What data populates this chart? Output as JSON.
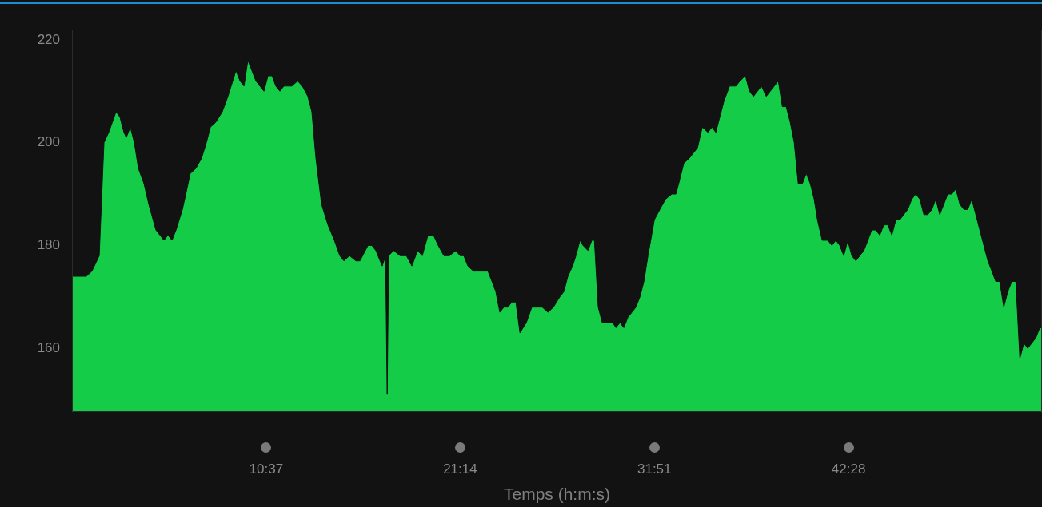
{
  "chart_data": {
    "type": "area",
    "xlabel": "Temps (h:m:s)",
    "color": "#14cc48",
    "grid": false,
    "xlim": [
      0,
      53.05
    ],
    "ylim": [
      147.6,
      222
    ],
    "xticks": [
      {
        "value": 10.62,
        "label": "10:37"
      },
      {
        "value": 21.23,
        "label": "21:14"
      },
      {
        "value": 31.85,
        "label": "31:51"
      },
      {
        "value": 42.47,
        "label": "42:28"
      }
    ],
    "yticks": [
      160,
      180,
      200,
      220
    ],
    "x": [
      0.0,
      0.44,
      0.79,
      1.09,
      1.49,
      1.75,
      2.01,
      2.41,
      2.62,
      2.84,
      2.97,
      3.19,
      3.41,
      3.63,
      3.94,
      4.2,
      4.59,
      4.81,
      5.03,
      5.25,
      5.47,
      5.69,
      6.04,
      6.47,
      6.78,
      7.09,
      7.35,
      7.57,
      7.87,
      8.22,
      8.53,
      8.97,
      9.19,
      9.41,
      9.62,
      9.84,
      10.06,
      10.5,
      10.72,
      10.94,
      11.15,
      11.37,
      11.59,
      11.81,
      12.03,
      12.34,
      12.6,
      12.9,
      13.12,
      13.34,
      13.65,
      14.0,
      14.35,
      14.65,
      14.87,
      15.18,
      15.53,
      15.75,
      16.19,
      16.4,
      16.62,
      16.97,
      17.15,
      17.24,
      17.32,
      17.59,
      17.94,
      18.29,
      18.59,
      18.9,
      19.16,
      19.47,
      19.77,
      20.03,
      20.34,
      20.65,
      21.0,
      21.22,
      21.43,
      21.65,
      21.96,
      22.22,
      22.53,
      22.75,
      22.97,
      23.18,
      23.4,
      23.62,
      23.84,
      24.06,
      24.28,
      24.5,
      24.85,
      25.15,
      25.37,
      25.72,
      26.03,
      26.33,
      26.68,
      26.9,
      27.12,
      27.38,
      27.56,
      27.78,
      27.95,
      28.22,
      28.43,
      28.57,
      28.78,
      29.0,
      29.31,
      29.57,
      29.75,
      29.97,
      30.18,
      30.4,
      30.84,
      31.06,
      31.28,
      31.5,
      31.85,
      32.15,
      32.46,
      32.81,
      33.03,
      33.25,
      33.46,
      33.77,
      33.99,
      34.21,
      34.47,
      34.78,
      35.0,
      35.21,
      35.65,
      35.96,
      36.31,
      36.53,
      36.83,
      37.05,
      37.27,
      37.49,
      37.71,
      37.97,
      38.19,
      38.41,
      38.63,
      38.85,
      39.06,
      39.28,
      39.5,
      39.72,
      39.94,
      40.16,
      40.38,
      40.59,
      40.77,
      41.03,
      41.34,
      41.56,
      41.78,
      41.99,
      42.21,
      42.43,
      42.65,
      42.87,
      43.09,
      43.31,
      43.53,
      43.74,
      43.96,
      44.18,
      44.4,
      44.62,
      44.84,
      45.06,
      45.28,
      45.49,
      45.71,
      45.93,
      46.15,
      46.37,
      46.59,
      46.81,
      47.03,
      47.24,
      47.46,
      47.68,
      47.9,
      48.12,
      48.34,
      48.56,
      48.78,
      48.99,
      49.21,
      49.43,
      49.65,
      49.87,
      50.09,
      50.31,
      50.52,
      50.74,
      50.96,
      51.18,
      51.4,
      51.62,
      51.84,
      52.06,
      52.27,
      52.49,
      52.71,
      52.93,
      53.05
    ],
    "values": [
      174,
      174,
      174,
      175,
      178,
      200,
      202,
      206,
      205,
      202,
      201,
      203,
      200,
      195,
      192,
      188,
      183,
      182,
      181,
      182,
      181,
      183,
      187,
      194,
      195,
      197,
      200,
      203,
      204,
      206,
      209,
      214,
      212,
      211,
      216,
      214,
      212,
      210,
      213,
      213,
      211,
      210,
      211,
      211,
      211,
      212,
      211,
      209,
      206,
      197,
      188,
      184,
      181,
      178,
      177,
      178,
      177,
      177,
      180,
      180,
      179,
      176,
      178,
      151,
      178,
      179,
      178,
      178,
      176,
      179,
      178,
      182,
      182,
      180,
      178,
      178,
      179,
      178,
      178,
      176,
      175,
      175,
      175,
      175,
      173,
      171,
      167,
      168,
      168,
      169,
      169,
      163,
      165,
      168,
      168,
      168,
      167,
      168,
      170,
      171,
      174,
      176,
      178,
      181,
      180,
      179,
      181,
      181,
      168,
      165,
      165,
      165,
      164,
      165,
      164,
      166,
      168,
      170,
      173,
      178,
      185,
      187,
      189,
      190,
      190,
      193,
      196,
      197,
      198,
      199,
      203,
      202,
      203,
      202,
      208,
      211,
      211,
      212,
      213,
      210,
      209,
      210,
      211,
      209,
      210,
      211,
      212,
      207,
      207,
      204,
      200,
      192,
      192,
      194,
      192,
      189,
      185,
      181,
      181,
      180,
      181,
      180,
      178,
      181,
      178,
      177,
      178,
      179,
      181,
      183,
      183,
      182,
      184,
      184,
      182,
      185,
      185,
      186,
      187,
      189,
      190,
      189,
      186,
      186,
      187,
      189,
      186,
      188,
      190,
      190,
      191,
      188,
      187,
      187,
      189,
      186,
      183,
      180,
      177,
      175,
      173,
      173,
      168,
      171,
      173,
      173,
      158,
      161,
      160,
      161,
      162,
      164,
      164
    ]
  }
}
